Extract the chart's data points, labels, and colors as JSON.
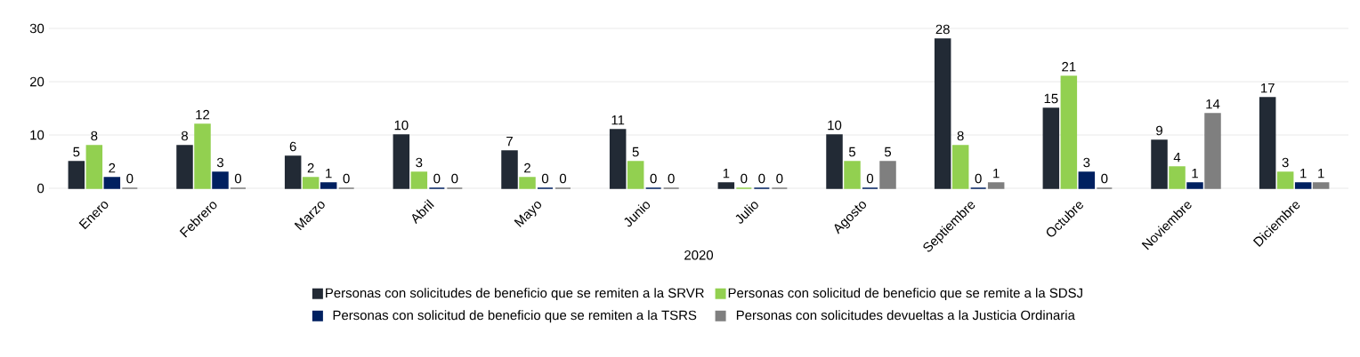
{
  "chart_data": {
    "type": "bar",
    "xlabel": "2020",
    "categories": [
      "Enero",
      "Febrero",
      "Marzo",
      "Abril",
      "Mayo",
      "Junio",
      "Julio",
      "Agosto",
      "Septiembre",
      "Octubre",
      "Noviembre",
      "Diciembre"
    ],
    "series": [
      {
        "name": "Personas con solicitudes de beneficio que se remiten a la SRVR",
        "color": "#222a35",
        "values": [
          5,
          8,
          6,
          10,
          7,
          11,
          1,
          10,
          28,
          15,
          9,
          17
        ]
      },
      {
        "name": "Personas con solicitud de beneficio que se remite a la SDSJ",
        "color": "#92d050",
        "values": [
          8,
          12,
          2,
          3,
          2,
          5,
          0,
          5,
          8,
          21,
          4,
          3
        ]
      },
      {
        "name": "Personas con solicitud de beneficio que se remiten a la TSRS",
        "color": "#002060",
        "values": [
          2,
          3,
          1,
          0,
          0,
          0,
          0,
          0,
          0,
          3,
          1,
          1
        ]
      },
      {
        "name": "Personas con solicitudes devueltas a la Justicia Ordinaria",
        "color": "#7f7f7f",
        "values": [
          0,
          0,
          0,
          0,
          0,
          0,
          0,
          5,
          1,
          0,
          14,
          1
        ]
      }
    ],
    "ylim": [
      0,
      30
    ],
    "yticks": [
      0,
      10,
      20,
      30
    ],
    "grid": "y",
    "legend": "bottom",
    "data_labels": true
  }
}
